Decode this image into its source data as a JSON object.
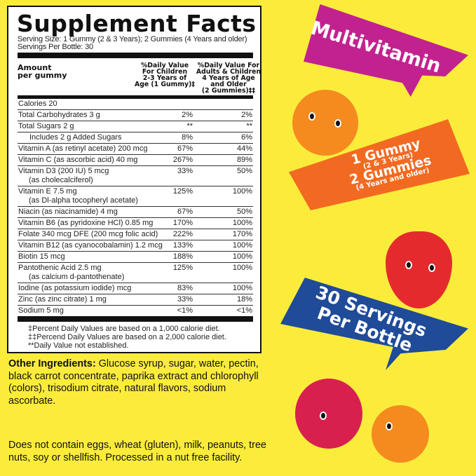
{
  "label": {
    "title": "Supplement Facts",
    "serving_size": "Serving Size: 1 Gummy (2 & 3 Years); 2 Gummies (4 Years and older)",
    "servings_per": "Servings Per Bottle: 30",
    "amount_header": [
      "Amount",
      "per gummy"
    ],
    "col1_header": [
      "%Daily Value",
      "For Children",
      "2-3 Years of",
      "Age (1 Gummy)‡"
    ],
    "col2_header": [
      "%Daily Value For",
      "Adults & Children",
      "4 Years of Age",
      "and Older",
      "(2 Gummies)‡‡"
    ],
    "calories": "Calories 20",
    "rows": [
      {
        "name": "Total Carbohydrates 3 g",
        "sub": "",
        "p1": "2%",
        "p2": "2%"
      },
      {
        "name": "Total Sugars 2 g",
        "sub": "",
        "p1": "**",
        "p2": "**"
      },
      {
        "name": "Includes 2 g Added Sugars",
        "sub": "",
        "p1": "8%",
        "p2": "6%",
        "indent": true
      },
      {
        "name": "Vitamin A (as retinyl acetate) 200 mcg",
        "sub": "",
        "p1": "67%",
        "p2": "44%"
      },
      {
        "name": "Vitamin C (as ascorbic acid) 40 mg",
        "sub": "",
        "p1": "267%",
        "p2": "89%"
      },
      {
        "name": "Vitamin D3 (200 IU) 5 mcg",
        "sub": "(as cholecalciferol)",
        "p1": "33%",
        "p2": "50%"
      },
      {
        "name": "Vitamin E 7.5 mg",
        "sub": "(as Dl-alpha tocopheryl acetate)",
        "p1": "125%",
        "p2": "100%"
      },
      {
        "name": "Niacin (as niacinamide) 4 mg",
        "sub": "",
        "p1": "67%",
        "p2": "50%"
      },
      {
        "name": "Vitamin B6 (as pyridoxine HCl) 0.85 mg",
        "sub": "",
        "p1": "170%",
        "p2": "100%"
      },
      {
        "name": "Folate 340 mcg DFE (200 mcg folic acid)",
        "sub": "",
        "p1": "222%",
        "p2": "170%"
      },
      {
        "name": "Vitamin B12 (as cyanocobalamin) 1.2 mcg",
        "sub": "",
        "p1": "133%",
        "p2": "100%"
      },
      {
        "name": "Biotin 15 mcg",
        "sub": "",
        "p1": "188%",
        "p2": "100%"
      },
      {
        "name": "Pantothenic Acid 2.5 mg",
        "sub": "(as calcium d-pantothenate)",
        "p1": "125%",
        "p2": "100%"
      },
      {
        "name": "Iodine (as potassium iodide) mcg",
        "sub": "",
        "p1": "83%",
        "p2": "100%"
      },
      {
        "name": "Zinc (as zinc citrate) 1 mg",
        "sub": "",
        "p1": "33%",
        "p2": "18%"
      },
      {
        "name": "Sodium 5 mg",
        "sub": "",
        "p1": "<1%",
        "p2": "<1%"
      }
    ],
    "footnotes": [
      "‡Percent Daily Values are based on a 1,000 calorie diet.",
      "‡‡Percend Daily Values are based on a 2,000 calorie diet.",
      "**Daily Value not established."
    ]
  },
  "ingredients": {
    "heading": "Other Ingredients:",
    "text": " Glucose syrup, sugar, water, pectin, black carrot concentrate, paprika extract and chlorophyll (colors), trisodium citrate, natural flavors, sodium ascorbate."
  },
  "allergen": "Does not contain eggs, wheat (gluten), milk, peanuts, tree nuts, soy or shellfish. Processed in a nut free facility.",
  "banners": {
    "multivitamin": "Multivitamin",
    "dose1": "1 Gummy",
    "dose1_sub": "(2 & 3 Years)",
    "dose2": "2 Gummies",
    "dose2_sub": "(4 Years and older)",
    "servings1": "30 Servings",
    "servings2": "Per Bottle"
  },
  "colors": {
    "background": "#fbec3c",
    "magenta": "#c2228f",
    "orange": "#f26a21",
    "blue": "#1f4b98"
  }
}
